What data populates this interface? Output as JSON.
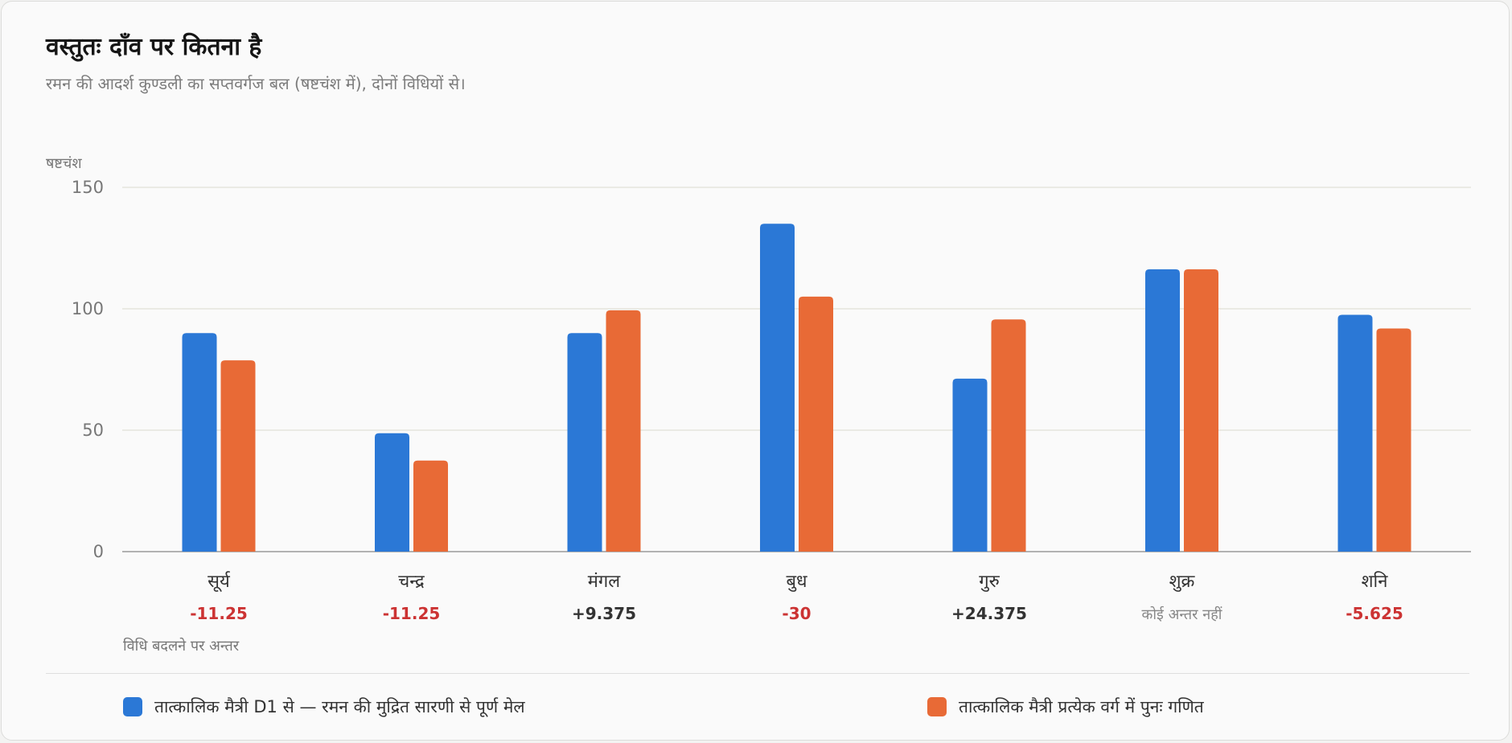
{
  "title": "वस्तुतः दाँव पर कितना है",
  "subtitle": "रमन की आदर्श कुण्डली का सप्तवर्गज बल (षष्टचंश में), दोनों विधियों से।",
  "colors": {
    "series_a": "#2b78d6",
    "series_b": "#e86a36",
    "negative_diff": "#cc3333",
    "positive_diff": "#333333",
    "neutral_diff": "#888888",
    "grid": "#e4e4dc",
    "axis": "#9a9a9a"
  },
  "chart_data": {
    "type": "bar",
    "ylabel": "षष्टचंश",
    "ylim": [
      0,
      150
    ],
    "yticks": [
      0,
      50,
      100,
      150
    ],
    "grid": true,
    "legend_position": "bottom",
    "categories": [
      "सूर्य",
      "चन्द्र",
      "मंगल",
      "बुध",
      "गुरु",
      "शुक्र",
      "शनि"
    ],
    "series": [
      {
        "name": "तात्कालिक मैत्री D1 से — रमन की मुद्रित सारणी से पूर्ण मेल",
        "values": [
          90,
          48.75,
          90,
          135,
          71.25,
          116.25,
          97.5
        ]
      },
      {
        "name": "तात्कालिक मैत्री प्रत्येक वर्ग में पुनः गणित",
        "values": [
          78.75,
          37.5,
          99.375,
          105,
          95.625,
          116.25,
          91.875
        ]
      }
    ],
    "difference_row_label": "विधि बदलने पर अन्तर",
    "differences": [
      {
        "text": "-11.25",
        "kind": "negative"
      },
      {
        "text": "-11.25",
        "kind": "negative"
      },
      {
        "text": "+9.375",
        "kind": "positive"
      },
      {
        "text": "-30",
        "kind": "negative"
      },
      {
        "text": "+24.375",
        "kind": "positive"
      },
      {
        "text": "कोई अन्तर नहीं",
        "kind": "neutral"
      },
      {
        "text": "-5.625",
        "kind": "negative"
      }
    ]
  }
}
